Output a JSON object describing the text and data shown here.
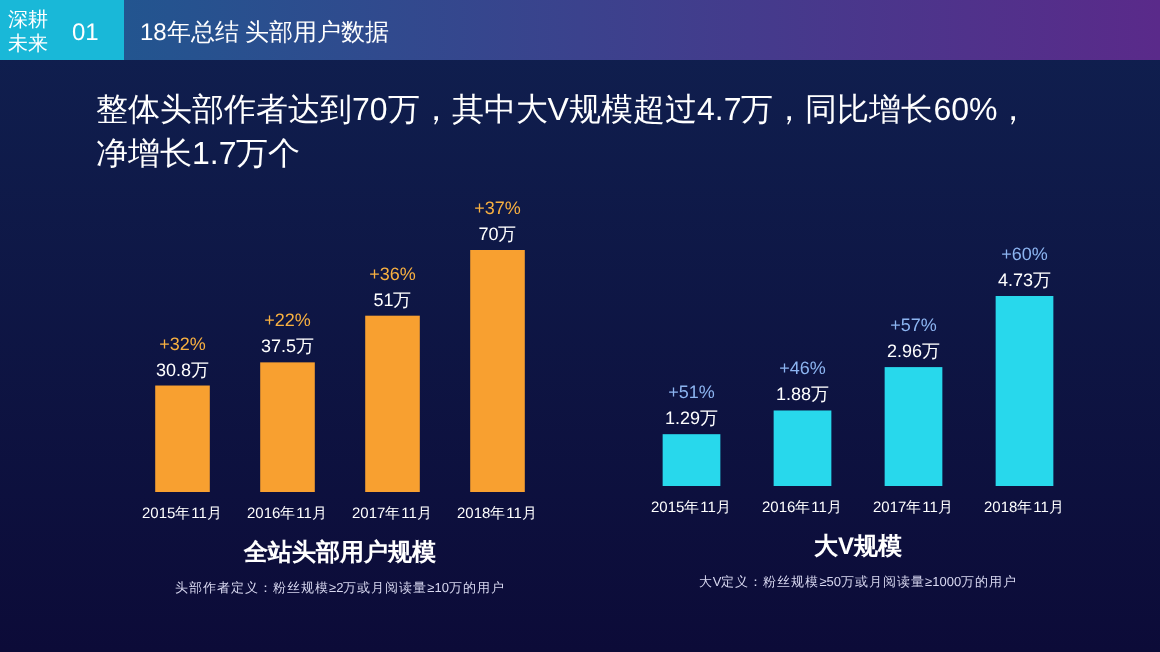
{
  "chart_data": [
    {
      "type": "other",
      "title": "18年总结 头部用户数据",
      "subtitle": "整体头部作者达到70万，其中大V规模超过4.7万，同比增长60%，净增长1.7万个",
      "annotations": [
        "深耕未来",
        "01"
      ]
    },
    {
      "type": "bar",
      "title": "全站头部用户规模",
      "categories": [
        "2015年11月",
        "2016年11月",
        "2017年11月",
        "2018年11月"
      ],
      "series": [
        {
          "color": "#f8a030",
          "values": [
            30.8,
            37.5,
            51,
            70
          ],
          "value_labels": [
            "30.8万",
            "37.5万",
            "51万",
            "70万"
          ]
        }
      ],
      "annotations": [
        {
          "text": "+32%",
          "x": "2015年11月",
          "y": 30.8
        },
        {
          "text": "+22%",
          "x": "2016年11月",
          "y": 37.5
        },
        {
          "text": "+36%",
          "x": "2017年11月",
          "y": 51
        },
        {
          "text": "+37%",
          "x": "2018年11月",
          "y": 70
        },
        "头部作者定义：粉丝规模≥2万或月阅读量≥10万的用户"
      ]
    },
    {
      "type": "bar",
      "title": "大V规模",
      "categories": [
        "2015年11月",
        "2016年11月",
        "2017年11月",
        "2018年11月"
      ],
      "series": [
        {
          "color": "#28d8ec",
          "values": [
            1.29,
            1.88,
            2.96,
            4.73
          ],
          "value_labels": [
            "1.29万",
            "1.88万",
            "2.96万",
            "4.73万"
          ]
        }
      ],
      "annotations": [
        {
          "text": "+51%",
          "x": "2015年11月",
          "y": 1.29
        },
        {
          "text": "+46%",
          "x": "2016年11月",
          "y": 1.88
        },
        {
          "text": "+57%",
          "x": "2017年11月",
          "y": 2.96
        },
        {
          "text": "+60%",
          "x": "2018年11月",
          "y": 4.73
        },
        "大V定义：粉丝规模≥50万或月阅读量≥1000万的用户"
      ]
    }
  ]
}
